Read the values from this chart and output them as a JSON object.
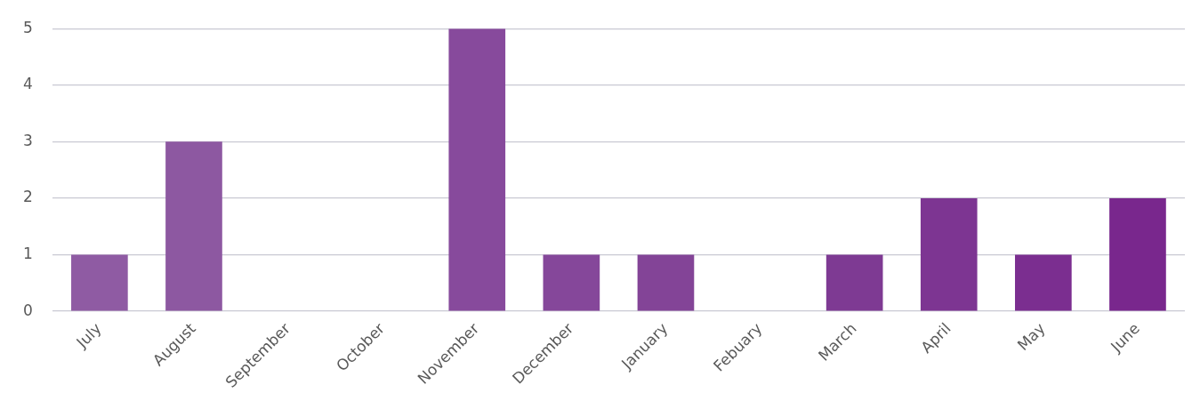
{
  "chart_data": {
    "type": "bar",
    "categories": [
      "July",
      "August",
      "September",
      "October",
      "November",
      "December",
      "January",
      "Febuary",
      "March",
      "April",
      "May",
      "June"
    ],
    "values": [
      1,
      3,
      0,
      0,
      5,
      1,
      1,
      0,
      1,
      2,
      1,
      2
    ],
    "colors": [
      "#8f5ba3",
      "#8d58a1",
      "#8b539f",
      "#8a4f9d",
      "#874a9c",
      "#85479a",
      "#834497",
      "#813f95",
      "#7e3a93",
      "#7d3592",
      "#7b2e90",
      "#79278d"
    ],
    "ylim": [
      0,
      5
    ],
    "yticks": [
      0,
      1,
      2,
      3,
      4,
      5
    ],
    "grid": "y",
    "legend": false
  }
}
